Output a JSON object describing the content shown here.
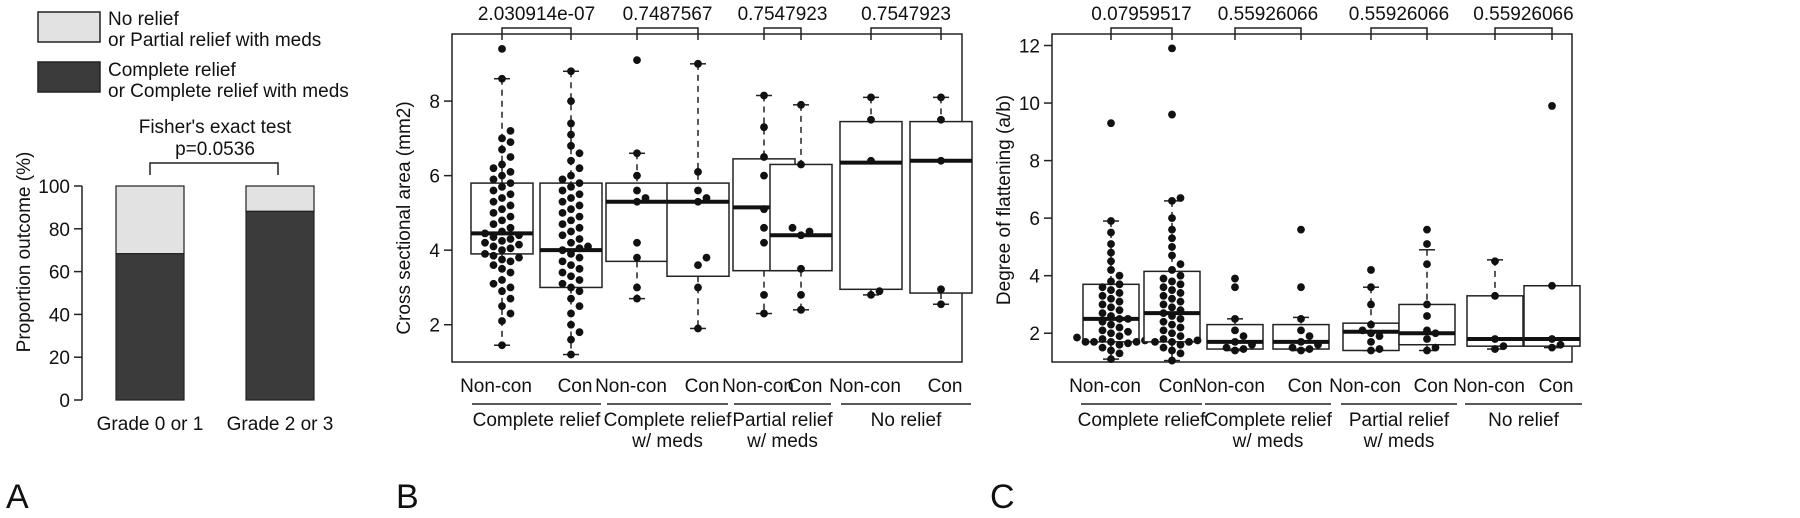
{
  "colors": {
    "no_relief_fill": "#e2e2e2",
    "complete_relief_fill": "#3b3b3b",
    "axis": "#222222"
  },
  "panel_labels": {
    "a": "A",
    "b": "B",
    "c": "C"
  },
  "chart_data": [
    {
      "type": "bar",
      "stacked": true,
      "legend": {
        "placement": "top-left",
        "items": [
          {
            "line1": "No relief",
            "line2": "or Partial relief with meds",
            "color": "#e2e2e2"
          },
          {
            "line1": "Complete relief",
            "line2": "or Complete relief with meds",
            "color": "#3b3b3b"
          }
        ]
      },
      "test_label": "Fisher's exact test",
      "p_label": "p=0.0536",
      "ylabel": "Proportion outcome (%)",
      "ylim": [
        0,
        100
      ],
      "yticks": [
        0,
        20,
        40,
        60,
        80,
        100
      ],
      "categories": [
        "Grade 0 or 1",
        "Grade 2 or 3"
      ],
      "series": [
        {
          "name": "Complete relief or Complete relief with meds",
          "values": [
            68.4,
            88.2
          ]
        },
        {
          "name": "No relief or Partial relief with meds",
          "values": [
            31.6,
            11.8
          ]
        }
      ]
    },
    {
      "type": "box",
      "ylabel": "Cross sectional area (mm2)",
      "ylim": [
        1.0,
        9.8
      ],
      "yticks": [
        2,
        4,
        6,
        8
      ],
      "p_values": [
        "2.030914e-07",
        "0.7487567",
        "0.7547923",
        "0.7547923"
      ],
      "groups": [
        {
          "label_lines": [
            "Complete relief"
          ],
          "sub": [
            "Non-con",
            "Con"
          ]
        },
        {
          "label_lines": [
            "Complete relief",
            "w/ meds"
          ],
          "sub": [
            "Non-con",
            "Con"
          ]
        },
        {
          "label_lines": [
            "Partial relief",
            "w/ meds"
          ],
          "sub": [
            "Non-con",
            "Con"
          ]
        },
        {
          "label_lines": [
            "No relief"
          ],
          "sub": [
            "Non-con",
            "Con"
          ]
        }
      ],
      "boxes": [
        {
          "q1": 3.9,
          "median": 4.45,
          "q3": 5.8,
          "lo": 1.45,
          "hi": 8.6,
          "points": [
            1.45,
            2.1,
            2.3,
            2.5,
            2.7,
            2.9,
            3.0,
            3.1,
            3.2,
            3.4,
            3.5,
            3.6,
            3.7,
            3.75,
            3.8,
            3.85,
            3.9,
            4.0,
            4.05,
            4.1,
            4.15,
            4.2,
            4.25,
            4.3,
            4.35,
            4.4,
            4.45,
            4.5,
            4.6,
            4.7,
            4.8,
            4.9,
            5.0,
            5.1,
            5.2,
            5.3,
            5.4,
            5.5,
            5.6,
            5.7,
            5.8,
            5.9,
            6.0,
            6.1,
            6.2,
            6.3,
            6.5,
            6.7,
            6.9,
            7.0,
            7.2,
            8.6,
            9.4
          ]
        },
        {
          "q1": 3.0,
          "median": 4.0,
          "q3": 5.8,
          "lo": 1.2,
          "hi": 8.8,
          "points": [
            1.2,
            1.6,
            1.8,
            2.0,
            2.3,
            2.5,
            2.7,
            2.9,
            3.0,
            3.1,
            3.2,
            3.3,
            3.4,
            3.5,
            3.6,
            3.7,
            3.8,
            3.9,
            4.0,
            4.05,
            4.1,
            4.2,
            4.3,
            4.4,
            4.5,
            4.6,
            4.7,
            4.8,
            4.9,
            5.0,
            5.1,
            5.2,
            5.3,
            5.4,
            5.5,
            5.6,
            5.7,
            5.8,
            5.9,
            6.0,
            6.2,
            6.4,
            6.6,
            6.8,
            7.1,
            7.4,
            8.0,
            8.8
          ]
        },
        {
          "q1": 3.7,
          "median": 5.3,
          "q3": 5.8,
          "lo": 2.7,
          "hi": 6.6,
          "points": [
            2.7,
            3.0,
            3.8,
            4.2,
            5.3,
            5.4,
            5.6,
            6.0,
            6.6,
            9.1
          ]
        },
        {
          "q1": 3.3,
          "median": 5.3,
          "q3": 5.8,
          "lo": 1.9,
          "hi": 9.0,
          "points": [
            1.9,
            3.0,
            3.6,
            3.8,
            5.3,
            5.4,
            5.6,
            6.1,
            9.0
          ]
        },
        {
          "q1": 3.45,
          "median": 5.15,
          "q3": 6.45,
          "lo": 2.3,
          "hi": 8.15,
          "points": [
            2.3,
            2.8,
            4.2,
            4.6,
            5.1,
            6.0,
            6.5,
            7.3,
            8.15
          ]
        },
        {
          "q1": 3.45,
          "median": 4.4,
          "q3": 6.3,
          "lo": 2.4,
          "hi": 7.9,
          "points": [
            2.4,
            2.8,
            3.5,
            4.4,
            4.5,
            4.6,
            6.3,
            7.9
          ]
        },
        {
          "q1": 2.95,
          "median": 6.35,
          "q3": 7.45,
          "lo": 2.8,
          "hi": 8.1,
          "points": [
            2.8,
            2.9,
            6.4,
            7.5,
            8.1
          ]
        },
        {
          "q1": 2.85,
          "median": 6.4,
          "q3": 7.45,
          "lo": 2.55,
          "hi": 8.1,
          "points": [
            2.55,
            2.95,
            6.4,
            7.5,
            8.1
          ]
        }
      ]
    },
    {
      "type": "box",
      "ylabel": "Degree of flattening (a/b)",
      "ylim": [
        1.0,
        12.4
      ],
      "yticks": [
        2,
        4,
        6,
        8,
        10,
        12
      ],
      "p_values": [
        "0.07959517",
        "0.55926066",
        "0.55926066",
        "0.55926066"
      ],
      "groups": [
        {
          "label_lines": [
            "Complete relief"
          ],
          "sub": [
            "Non-con",
            "Con"
          ]
        },
        {
          "label_lines": [
            "Complete relief",
            "w/ meds"
          ],
          "sub": [
            "Non-con",
            "Con"
          ]
        },
        {
          "label_lines": [
            "Partial relief",
            "w/ meds"
          ],
          "sub": [
            "Non-con",
            "Con"
          ]
        },
        {
          "label_lines": [
            "No relief"
          ],
          "sub": [
            "Non-con",
            "Con"
          ]
        }
      ],
      "boxes": [
        {
          "q1": 1.7,
          "median": 2.5,
          "q3": 3.7,
          "lo": 1.1,
          "hi": 5.9,
          "points": [
            1.1,
            1.3,
            1.4,
            1.5,
            1.6,
            1.65,
            1.7,
            1.7,
            1.7,
            1.7,
            1.75,
            1.8,
            1.85,
            1.9,
            2.0,
            2.05,
            2.1,
            2.2,
            2.3,
            2.4,
            2.5,
            2.5,
            2.6,
            2.7,
            2.8,
            2.9,
            3.0,
            3.1,
            3.2,
            3.3,
            3.4,
            3.5,
            3.6,
            3.7,
            3.8,
            4.0,
            4.2,
            4.5,
            4.8,
            5.1,
            5.5,
            5.9,
            9.3
          ]
        },
        {
          "q1": 1.7,
          "median": 2.7,
          "q3": 4.15,
          "lo": 1.05,
          "hi": 6.6,
          "points": [
            1.05,
            1.3,
            1.4,
            1.5,
            1.6,
            1.7,
            1.7,
            1.7,
            1.75,
            1.8,
            1.9,
            2.0,
            2.1,
            2.2,
            2.3,
            2.4,
            2.5,
            2.6,
            2.7,
            2.8,
            2.9,
            3.0,
            3.1,
            3.2,
            3.3,
            3.4,
            3.5,
            3.6,
            3.7,
            3.8,
            3.9,
            4.0,
            4.2,
            4.4,
            4.7,
            5.0,
            5.3,
            5.6,
            6.0,
            6.6,
            6.7,
            9.6,
            11.9
          ]
        },
        {
          "q1": 1.45,
          "median": 1.7,
          "q3": 2.3,
          "lo": 1.4,
          "hi": 2.5,
          "points": [
            1.4,
            1.45,
            1.5,
            1.6,
            1.7,
            1.9,
            2.1,
            2.5,
            3.6,
            3.9
          ]
        },
        {
          "q1": 1.45,
          "median": 1.7,
          "q3": 2.3,
          "lo": 1.4,
          "hi": 2.55,
          "points": [
            1.4,
            1.45,
            1.5,
            1.6,
            1.7,
            1.9,
            2.1,
            2.5,
            3.6,
            5.6
          ]
        },
        {
          "q1": 1.4,
          "median": 2.05,
          "q3": 2.35,
          "lo": 1.4,
          "hi": 3.6,
          "points": [
            1.4,
            1.45,
            1.7,
            1.9,
            2.0,
            2.1,
            2.3,
            3.0,
            3.6,
            4.2
          ]
        },
        {
          "q1": 1.6,
          "median": 2.0,
          "q3": 3.0,
          "lo": 1.4,
          "hi": 4.9,
          "points": [
            1.4,
            1.5,
            1.8,
            2.0,
            2.1,
            2.6,
            3.0,
            4.4,
            5.1,
            5.6
          ]
        },
        {
          "q1": 1.55,
          "median": 1.8,
          "q3": 3.3,
          "lo": 1.45,
          "hi": 4.55,
          "points": [
            1.45,
            1.55,
            1.8,
            3.3,
            4.5
          ]
        },
        {
          "q1": 1.55,
          "median": 1.8,
          "q3": 3.65,
          "lo": 1.5,
          "hi": 3.65,
          "points": [
            1.5,
            1.6,
            1.8,
            3.65,
            9.9
          ]
        }
      ]
    }
  ]
}
